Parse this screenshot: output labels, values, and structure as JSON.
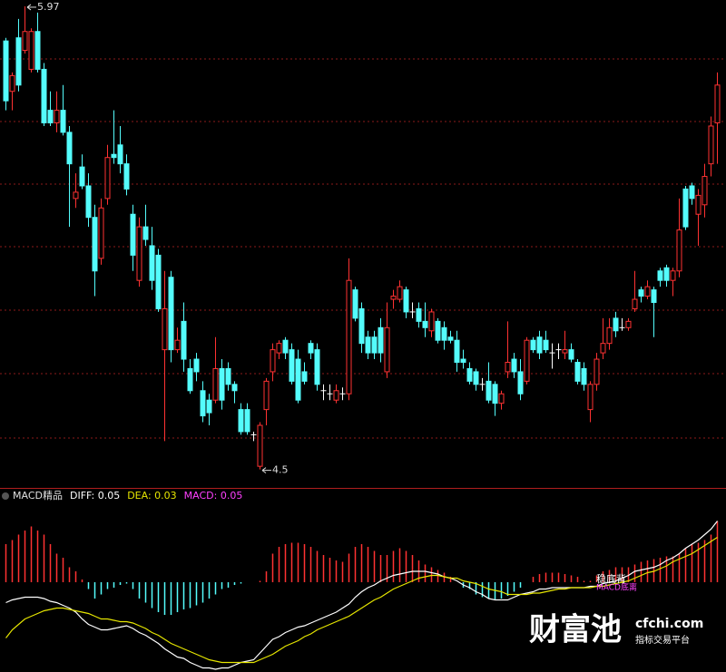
{
  "chart_data": [
    {
      "type": "candlestick",
      "up_color": "#ff3232",
      "down_color": "#54fcfc",
      "flat_color": "#ffffff",
      "ylim": [
        4.45,
        5.99
      ],
      "open": [
        5.86,
        5.7,
        5.87,
        5.83,
        5.77,
        5.89,
        5.77,
        5.64,
        5.6,
        5.64,
        5.57,
        5.36,
        5.46,
        5.4,
        5.3,
        5.17,
        5.36,
        5.5,
        5.53,
        5.47,
        5.31,
        5.1,
        5.27,
        5.21,
        5.18,
        4.88,
        5.11,
        4.88,
        4.97,
        4.82,
        4.85,
        4.75,
        4.72,
        4.72,
        4.82,
        4.82,
        4.77,
        4.69,
        4.69,
        4.61,
        4.51,
        4.69,
        4.81,
        4.87,
        4.91,
        4.88,
        4.85,
        4.81,
        4.9,
        4.88,
        4.75,
        4.74,
        4.72,
        4.74,
        4.74,
        5.07,
        5.01,
        4.92,
        4.92,
        4.95,
        4.81,
        5.04,
        5.04,
        5.07,
        5.0,
        5.01,
        4.97,
        4.94,
        4.97,
        4.95,
        4.92,
        4.91,
        4.85,
        4.82,
        4.81,
        4.77,
        4.78,
        4.77,
        4.71,
        4.81,
        4.85,
        4.81,
        4.78,
        4.91,
        4.92,
        4.91,
        4.87,
        4.88,
        4.87,
        4.88,
        4.84,
        4.82,
        4.69,
        4.77,
        4.87,
        4.9,
        4.98,
        4.95,
        4.95,
        5.01,
        5.07,
        5.05,
        5.07,
        5.13,
        5.14,
        5.1,
        5.13,
        5.39,
        5.4,
        5.31,
        5.34,
        5.47,
        5.6
      ],
      "high": [
        5.87,
        5.76,
        5.93,
        5.97,
        5.9,
        5.95,
        5.79,
        5.7,
        5.7,
        5.72,
        5.59,
        5.44,
        5.5,
        5.44,
        5.34,
        5.36,
        5.53,
        5.64,
        5.59,
        5.5,
        5.34,
        5.3,
        5.34,
        5.27,
        5.2,
        5.13,
        5.13,
        4.95,
        5.03,
        4.85,
        4.87,
        4.78,
        4.74,
        4.92,
        4.85,
        4.84,
        4.78,
        4.71,
        4.71,
        4.62,
        4.65,
        4.79,
        4.9,
        4.91,
        4.92,
        4.9,
        4.88,
        4.84,
        4.91,
        4.9,
        4.77,
        4.77,
        4.77,
        4.76,
        5.17,
        5.08,
        5.03,
        4.94,
        4.94,
        4.98,
        5.03,
        5.07,
        5.1,
        5.08,
        5.03,
        5.03,
        5.03,
        5.01,
        4.98,
        4.97,
        4.94,
        4.94,
        4.88,
        4.84,
        4.82,
        4.79,
        4.84,
        4.78,
        4.75,
        4.97,
        4.87,
        4.85,
        4.92,
        4.92,
        4.94,
        4.94,
        4.9,
        4.9,
        4.94,
        4.9,
        4.85,
        4.84,
        4.78,
        4.87,
        4.98,
        4.98,
        5.0,
        4.98,
        4.98,
        5.13,
        5.08,
        5.1,
        5.08,
        5.14,
        5.15,
        5.14,
        5.36,
        5.4,
        5.41,
        5.39,
        5.47,
        5.62,
        5.76
      ],
      "low": [
        5.64,
        5.64,
        5.7,
        5.82,
        5.76,
        5.76,
        5.59,
        5.59,
        5.57,
        5.56,
        5.27,
        5.33,
        5.39,
        5.27,
        5.05,
        5.15,
        5.34,
        5.47,
        5.44,
        5.37,
        5.13,
        5.08,
        5.21,
        5.07,
        5.0,
        4.59,
        4.84,
        4.87,
        4.81,
        4.74,
        4.78,
        4.65,
        4.64,
        4.71,
        4.69,
        4.75,
        4.71,
        4.61,
        4.61,
        4.59,
        4.5,
        4.64,
        4.78,
        4.85,
        4.85,
        4.77,
        4.71,
        4.77,
        4.85,
        4.75,
        4.72,
        4.72,
        4.71,
        4.72,
        4.72,
        4.97,
        4.87,
        4.85,
        4.85,
        4.84,
        4.79,
        5.01,
        5.03,
        4.98,
        4.98,
        4.95,
        4.92,
        4.92,
        4.9,
        4.88,
        4.9,
        4.81,
        4.82,
        4.77,
        4.75,
        4.75,
        4.71,
        4.67,
        4.69,
        4.79,
        4.79,
        4.72,
        4.77,
        4.87,
        4.85,
        4.87,
        4.82,
        4.85,
        4.85,
        4.84,
        4.77,
        4.75,
        4.65,
        4.75,
        4.85,
        4.88,
        4.92,
        4.94,
        4.94,
        5.0,
        5.03,
        5.04,
        4.92,
        5.08,
        5.08,
        5.05,
        5.11,
        5.26,
        5.34,
        5.21,
        5.3,
        5.43,
        5.47
      ],
      "close": [
        5.67,
        5.75,
        5.72,
        5.89,
        5.89,
        5.77,
        5.6,
        5.6,
        5.64,
        5.57,
        5.47,
        5.38,
        5.4,
        5.3,
        5.13,
        5.33,
        5.49,
        5.49,
        5.47,
        5.39,
        5.18,
        5.27,
        5.23,
        5.1,
        5.01,
        5.01,
        4.88,
        4.91,
        4.85,
        4.75,
        4.81,
        4.67,
        4.68,
        4.82,
        4.72,
        4.77,
        4.75,
        4.62,
        4.62,
        4.61,
        4.64,
        4.78,
        4.88,
        4.9,
        4.87,
        4.78,
        4.72,
        4.78,
        4.87,
        4.77,
        4.75,
        4.74,
        4.75,
        4.74,
        5.1,
        4.98,
        4.9,
        4.87,
        4.87,
        4.87,
        4.95,
        5.05,
        5.08,
        5.0,
        5.0,
        4.97,
        4.95,
        5.0,
        4.91,
        4.91,
        4.91,
        4.84,
        4.84,
        4.78,
        4.77,
        4.77,
        4.72,
        4.71,
        4.74,
        4.84,
        4.81,
        4.74,
        4.91,
        4.88,
        4.87,
        4.88,
        4.87,
        4.88,
        4.88,
        4.85,
        4.78,
        4.77,
        4.77,
        4.85,
        4.9,
        4.95,
        4.94,
        4.95,
        4.97,
        5.04,
        5.05,
        5.08,
        5.03,
        5.1,
        5.1,
        5.13,
        5.26,
        5.27,
        5.36,
        5.37,
        5.43,
        5.59,
        5.72
      ]
    },
    {
      "type": "macd",
      "title": "MACD精品",
      "ylim": [
        -0.066,
        0.064
      ],
      "series": [
        {
          "name": "DIFF: 0.05",
          "color": "#ffffff",
          "values": [
            -0.015,
            -0.013,
            -0.012,
            -0.011,
            -0.011,
            -0.011,
            -0.012,
            -0.014,
            -0.015,
            -0.017,
            -0.019,
            -0.022,
            -0.027,
            -0.031,
            -0.033,
            -0.035,
            -0.035,
            -0.034,
            -0.033,
            -0.032,
            -0.034,
            -0.037,
            -0.039,
            -0.042,
            -0.045,
            -0.049,
            -0.052,
            -0.055,
            -0.056,
            -0.059,
            -0.061,
            -0.063,
            -0.063,
            -0.064,
            -0.063,
            -0.063,
            -0.061,
            -0.059,
            -0.058,
            -0.057,
            -0.052,
            -0.047,
            -0.042,
            -0.04,
            -0.037,
            -0.035,
            -0.033,
            -0.032,
            -0.03,
            -0.028,
            -0.026,
            -0.024,
            -0.022,
            -0.019,
            -0.016,
            -0.011,
            -0.007,
            -0.004,
            -0.002,
            0.001,
            0.003,
            0.005,
            0.006,
            0.007,
            0.008,
            0.008,
            0.008,
            0.007,
            0.006,
            0.004,
            0.003,
            0.001,
            -0.002,
            -0.004,
            -0.007,
            -0.009,
            -0.012,
            -0.013,
            -0.013,
            -0.013,
            -0.011,
            -0.009,
            -0.008,
            -0.007,
            -0.005,
            -0.005,
            -0.004,
            -0.004,
            -0.004,
            -0.004,
            -0.004,
            -0.004,
            -0.003,
            -0.003,
            -0.001,
            0,
            0.001,
            0.003,
            0.005,
            0.008,
            0.009,
            0.01,
            0.011,
            0.013,
            0.016,
            0.018,
            0.021,
            0.025,
            0.028,
            0.031,
            0.035,
            0.039,
            0.045
          ]
        },
        {
          "name": "DEA: 0.03",
          "color": "#e6e600",
          "values": [
            -0.041,
            -0.035,
            -0.031,
            -0.027,
            -0.025,
            -0.023,
            -0.021,
            -0.02,
            -0.019,
            -0.019,
            -0.02,
            -0.021,
            -0.022,
            -0.023,
            -0.025,
            -0.027,
            -0.027,
            -0.028,
            -0.029,
            -0.029,
            -0.03,
            -0.032,
            -0.034,
            -0.037,
            -0.039,
            -0.042,
            -0.045,
            -0.047,
            -0.049,
            -0.051,
            -0.053,
            -0.055,
            -0.057,
            -0.058,
            -0.059,
            -0.059,
            -0.059,
            -0.059,
            -0.059,
            -0.059,
            -0.057,
            -0.055,
            -0.053,
            -0.05,
            -0.047,
            -0.045,
            -0.043,
            -0.04,
            -0.038,
            -0.035,
            -0.033,
            -0.031,
            -0.029,
            -0.027,
            -0.025,
            -0.022,
            -0.019,
            -0.016,
            -0.013,
            -0.011,
            -0.008,
            -0.005,
            -0.003,
            -0.001,
            0.001,
            0.003,
            0.004,
            0.005,
            0.005,
            0.004,
            0.003,
            0.003,
            0.001,
            0,
            -0.001,
            -0.003,
            -0.005,
            -0.006,
            -0.007,
            -0.009,
            -0.009,
            -0.009,
            -0.009,
            -0.008,
            -0.008,
            -0.007,
            -0.006,
            -0.005,
            -0.005,
            -0.004,
            -0.004,
            -0.004,
            -0.004,
            -0.003,
            -0.003,
            -0.002,
            -0.001,
            0,
            0.001,
            0.003,
            0.005,
            0.007,
            0.008,
            0.01,
            0.012,
            0.015,
            0.017,
            0.019,
            0.021,
            0.024,
            0.027,
            0.03,
            0.033
          ]
        },
        {
          "name": "MACD: 0.05",
          "color": "#ff40ff",
          "up_color": "#ff3232",
          "down_color": "#54fcfc",
          "values": [
            0.028,
            0.031,
            0.035,
            0.038,
            0.041,
            0.038,
            0.035,
            0.028,
            0.021,
            0.018,
            0.011,
            0.008,
            0.002,
            -0.005,
            -0.012,
            -0.009,
            -0.005,
            -0.004,
            -0.002,
            -0.001,
            -0.005,
            -0.012,
            -0.015,
            -0.019,
            -0.022,
            -0.024,
            -0.024,
            -0.022,
            -0.02,
            -0.019,
            -0.017,
            -0.015,
            -0.012,
            -0.009,
            -0.005,
            -0.004,
            -0.002,
            -0.001,
            0,
            0,
            0.001,
            0.008,
            0.021,
            0.026,
            0.028,
            0.029,
            0.029,
            0.028,
            0.026,
            0.023,
            0.02,
            0.018,
            0.016,
            0.015,
            0.021,
            0.026,
            0.028,
            0.026,
            0.023,
            0.02,
            0.02,
            0.023,
            0.025,
            0.023,
            0.02,
            0.016,
            0.013,
            0.011,
            0.009,
            0.007,
            0.004,
            0,
            -0.004,
            -0.005,
            -0.009,
            -0.011,
            -0.012,
            -0.013,
            -0.012,
            -0.01,
            -0.007,
            -0.004,
            0,
            0.004,
            0.006,
            0.007,
            0.007,
            0.007,
            0.006,
            0.005,
            0.004,
            0.001,
            0.001,
            0.005,
            0.008,
            0.009,
            0.011,
            0.011,
            0.011,
            0.013,
            0.015,
            0.016,
            0.017,
            0.018,
            0.019,
            0.019,
            0.021,
            0.025,
            0.028,
            0.029,
            0.031,
            0.035,
            0.045
          ]
        }
      ],
      "annotations": [
        {
          "text": "稳底背",
          "color": "#ffffff"
        },
        {
          "text": "MACD底离",
          "color": "#ff40ff"
        }
      ]
    }
  ],
  "watermark": {
    "brand": "财富池",
    "domain": "cfchi.com",
    "tagline": "指标交易平台"
  }
}
